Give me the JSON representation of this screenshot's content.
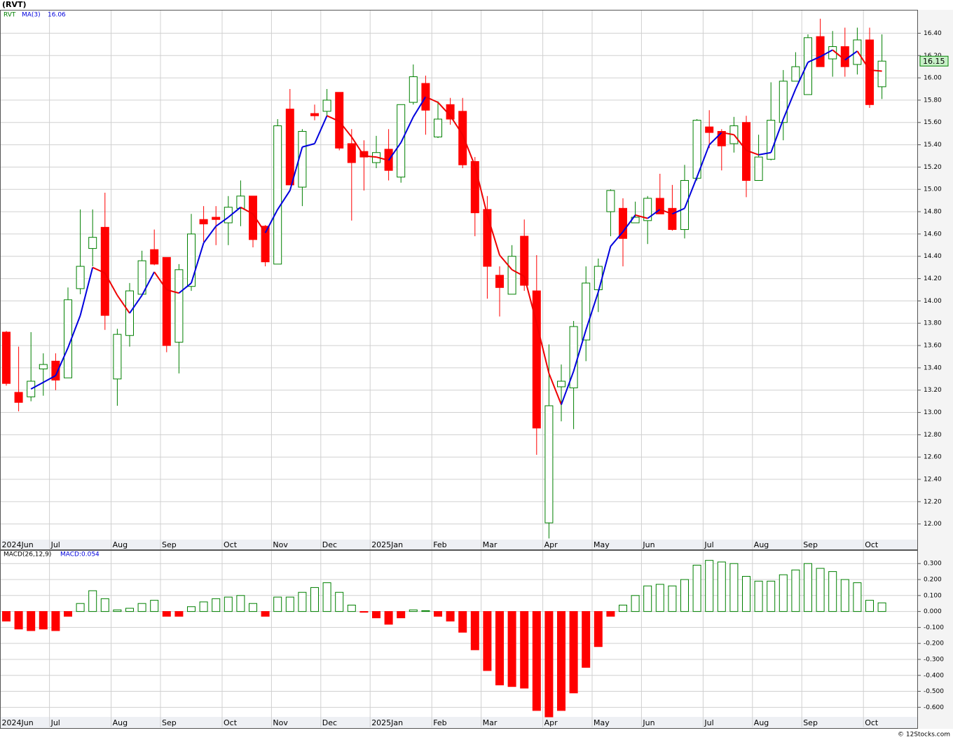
{
  "title": "(RVT)",
  "footer": "© 12Stocks.com",
  "chart_data": [
    {
      "type": "candlestick",
      "categories": [
        "2024Jun",
        null,
        null,
        null,
        "Jul",
        null,
        null,
        null,
        null,
        "Aug",
        null,
        null,
        null,
        "Sep",
        null,
        null,
        null,
        null,
        "Oct",
        null,
        null,
        null,
        "Nov",
        null,
        null,
        null,
        "Dec",
        null,
        null,
        null,
        "2025Jan",
        null,
        null,
        null,
        null,
        "Feb",
        null,
        null,
        null,
        "Mar",
        null,
        null,
        null,
        null,
        "Apr",
        null,
        null,
        null,
        "May",
        null,
        null,
        null,
        "Jun",
        null,
        null,
        null,
        null,
        "Jul",
        null,
        null,
        null,
        "Aug",
        null,
        null,
        null,
        "Sep",
        null,
        null,
        null,
        null,
        "Oct",
        null
      ],
      "series": [
        {
          "name": "RVT",
          "up_color": "#008000",
          "down_color": "#ff0000",
          "open": [
            13.72,
            13.18,
            13.14,
            13.39,
            13.46,
            13.31,
            14.11,
            14.47,
            14.66,
            13.3,
            13.69,
            14.06,
            14.46,
            14.39,
            13.63,
            14.13,
            14.73,
            14.75,
            14.7,
            14.83,
            14.94,
            14.67,
            14.33,
            15.72,
            15.02,
            15.68,
            15.7,
            15.87,
            15.41,
            15.34,
            15.24,
            15.36,
            15.11,
            15.78,
            15.95,
            15.47,
            15.76,
            15.7,
            15.25,
            14.82,
            14.23,
            14.06,
            14.58,
            14.09,
            12.01,
            13.23,
            13.22,
            13.65,
            14.1,
            14.8,
            14.83,
            14.7,
            14.72,
            14.92,
            14.83,
            14.64,
            15.1,
            15.56,
            15.52,
            15.41,
            15.6,
            15.08,
            15.27,
            15.6,
            15.97,
            15.85,
            16.37,
            16.17,
            16.28,
            16.12,
            16.34,
            15.92
          ],
          "high": [
            13.73,
            13.59,
            13.72,
            13.53,
            13.53,
            14.12,
            14.82,
            14.82,
            14.97,
            13.75,
            14.16,
            14.45,
            14.64,
            14.39,
            14.33,
            14.78,
            14.85,
            14.85,
            14.94,
            15.08,
            14.94,
            14.68,
            15.63,
            15.9,
            15.54,
            15.76,
            15.9,
            15.87,
            15.54,
            15.44,
            15.48,
            15.54,
            15.76,
            16.12,
            16.02,
            15.79,
            15.82,
            15.82,
            15.29,
            14.94,
            14.31,
            14.5,
            14.73,
            14.41,
            13.61,
            13.43,
            13.82,
            14.31,
            14.38,
            15.0,
            14.92,
            14.89,
            14.94,
            15.14,
            15.04,
            15.22,
            15.63,
            15.71,
            15.54,
            15.65,
            15.66,
            15.49,
            15.96,
            16.07,
            16.23,
            16.39,
            16.53,
            16.42,
            16.45,
            16.45,
            16.45,
            16.39
          ],
          "low": [
            13.24,
            13.01,
            13.1,
            13.15,
            13.2,
            13.31,
            14.06,
            14.31,
            13.74,
            13.06,
            13.59,
            14.06,
            14.32,
            13.54,
            13.35,
            14.09,
            14.53,
            14.5,
            14.5,
            14.67,
            14.48,
            14.31,
            14.33,
            15.04,
            14.85,
            15.62,
            15.66,
            15.35,
            14.72,
            14.99,
            15.19,
            15.08,
            15.06,
            15.76,
            15.49,
            15.46,
            15.58,
            15.19,
            14.58,
            14.02,
            13.86,
            14.06,
            14.09,
            12.62,
            11.87,
            12.92,
            12.85,
            13.46,
            13.9,
            14.58,
            14.31,
            14.7,
            14.51,
            14.78,
            14.63,
            14.56,
            15.08,
            15.37,
            15.17,
            15.33,
            14.93,
            15.08,
            15.26,
            15.44,
            15.97,
            15.85,
            16.1,
            16.01,
            16.01,
            16.03,
            15.73,
            15.81
          ],
          "close": [
            13.26,
            13.09,
            13.28,
            13.43,
            13.29,
            14.01,
            14.31,
            14.57,
            13.87,
            13.7,
            14.09,
            14.36,
            14.33,
            13.6,
            14.28,
            14.6,
            14.69,
            14.73,
            14.84,
            14.94,
            14.55,
            14.35,
            15.57,
            15.04,
            15.52,
            15.66,
            15.8,
            15.37,
            15.24,
            15.29,
            15.33,
            15.17,
            15.76,
            16.01,
            15.71,
            15.63,
            15.63,
            15.22,
            14.79,
            14.31,
            14.12,
            14.4,
            14.14,
            12.86,
            13.06,
            13.28,
            13.77,
            14.16,
            14.31,
            14.99,
            14.56,
            14.75,
            14.92,
            14.78,
            14.64,
            15.08,
            15.62,
            15.51,
            15.39,
            15.57,
            15.08,
            15.29,
            15.62,
            15.97,
            16.1,
            16.36,
            16.1,
            16.28,
            16.1,
            16.34,
            15.76,
            16.15
          ]
        },
        {
          "name": "MA(3)",
          "up_color": "#0000dd",
          "down_color": "#ee0000",
          "values": [
            null,
            null,
            13.21,
            13.27,
            13.33,
            13.58,
            13.87,
            14.3,
            14.25,
            14.05,
            13.89,
            14.05,
            14.26,
            14.1,
            14.07,
            14.16,
            14.52,
            14.67,
            14.75,
            14.84,
            14.78,
            14.61,
            14.82,
            14.99,
            15.38,
            15.41,
            15.66,
            15.61,
            15.47,
            15.3,
            15.29,
            15.26,
            15.42,
            15.65,
            15.83,
            15.78,
            15.66,
            15.49,
            15.21,
            14.77,
            14.41,
            14.28,
            14.22,
            13.8,
            13.35,
            13.07,
            13.37,
            13.74,
            14.08,
            14.49,
            14.62,
            14.77,
            14.74,
            14.82,
            14.78,
            14.83,
            15.11,
            15.4,
            15.51,
            15.49,
            15.35,
            15.31,
            15.33,
            15.63,
            15.9,
            16.14,
            16.19,
            16.25,
            16.16,
            16.24,
            16.07,
            16.06
          ]
        }
      ],
      "ylim": [
        11.86,
        16.61
      ],
      "yticks": [
        {
          "value": 12,
          "label": "12.00"
        },
        {
          "value": 12.2,
          "label": "12.20"
        },
        {
          "value": 12.4,
          "label": "12.40"
        },
        {
          "value": 12.6,
          "label": "12.60"
        },
        {
          "value": 12.8,
          "label": "12.80"
        },
        {
          "value": 13,
          "label": "13.00"
        },
        {
          "value": 13.2,
          "label": "13.20"
        },
        {
          "value": 13.4,
          "label": "13.40"
        },
        {
          "value": 13.6,
          "label": "13.60"
        },
        {
          "value": 13.8,
          "label": "13.80"
        },
        {
          "value": 14,
          "label": "14.00"
        },
        {
          "value": 14.2,
          "label": "14.20"
        },
        {
          "value": 14.4,
          "label": "14.40"
        },
        {
          "value": 14.6,
          "label": "14.60"
        },
        {
          "value": 14.8,
          "label": "14.80"
        },
        {
          "value": 15,
          "label": "15.00"
        },
        {
          "value": 15.2,
          "label": "15.20"
        },
        {
          "value": 15.4,
          "label": "15.40"
        },
        {
          "value": 15.6,
          "label": "15.60"
        },
        {
          "value": 15.8,
          "label": "15.80"
        },
        {
          "value": 16,
          "label": "16.00"
        },
        {
          "value": 16.2,
          "label": "16.20"
        },
        {
          "value": 16.4,
          "label": "16.40"
        }
      ],
      "grid": true
    },
    {
      "type": "bar",
      "title": "MACD(26,12,9)",
      "subtitle": "MACD:0.054",
      "categories": [
        "2024Jun",
        null,
        null,
        null,
        "Jul",
        null,
        null,
        null,
        null,
        "Aug",
        null,
        null,
        null,
        "Sep",
        null,
        null,
        null,
        null,
        "Oct",
        null,
        null,
        null,
        "Nov",
        null,
        null,
        null,
        "Dec",
        null,
        null,
        null,
        "2025Jan",
        null,
        null,
        null,
        null,
        "Feb",
        null,
        null,
        null,
        "Mar",
        null,
        null,
        null,
        null,
        "Apr",
        null,
        null,
        null,
        "May",
        null,
        null,
        null,
        "Jun",
        null,
        null,
        null,
        null,
        "Jul",
        null,
        null,
        null,
        "Aug",
        null,
        null,
        null,
        "Sep",
        null,
        null,
        null,
        null,
        "Oct",
        null
      ],
      "values": [
        -0.06,
        -0.11,
        -0.12,
        -0.11,
        -0.12,
        -0.03,
        0.05,
        0.13,
        0.08,
        0.01,
        0.02,
        0.05,
        0.07,
        -0.03,
        -0.03,
        0.03,
        0.06,
        0.08,
        0.09,
        0.1,
        0.05,
        -0.03,
        0.09,
        0.09,
        0.12,
        0.15,
        0.18,
        0.12,
        0.04,
        -0.005,
        -0.04,
        -0.08,
        -0.04,
        0.01,
        0.005,
        -0.03,
        -0.06,
        -0.13,
        -0.24,
        -0.37,
        -0.46,
        -0.47,
        -0.48,
        -0.62,
        -0.66,
        -0.62,
        -0.51,
        -0.35,
        -0.22,
        -0.03,
        0.04,
        0.1,
        0.16,
        0.17,
        0.16,
        0.2,
        0.29,
        0.32,
        0.31,
        0.3,
        0.22,
        0.19,
        0.19,
        0.23,
        0.26,
        0.3,
        0.27,
        0.25,
        0.2,
        0.18,
        0.07,
        0.054
      ],
      "up_color": "#008000",
      "down_color": "#ff0000",
      "ylim": [
        -0.66,
        0.38
      ],
      "yticks": [
        {
          "value": -0.6,
          "label": "-0.600"
        },
        {
          "value": -0.5,
          "label": "-0.500"
        },
        {
          "value": -0.4,
          "label": "-0.400"
        },
        {
          "value": -0.3,
          "label": "-0.300"
        },
        {
          "value": -0.2,
          "label": "-0.200"
        },
        {
          "value": -0.1,
          "label": "-0.100"
        },
        {
          "value": 0,
          "label": "0.000"
        },
        {
          "value": 0.1,
          "label": "0.100"
        },
        {
          "value": 0.2,
          "label": "0.200"
        },
        {
          "value": 0.3,
          "label": "0.300"
        }
      ],
      "grid": true
    }
  ]
}
